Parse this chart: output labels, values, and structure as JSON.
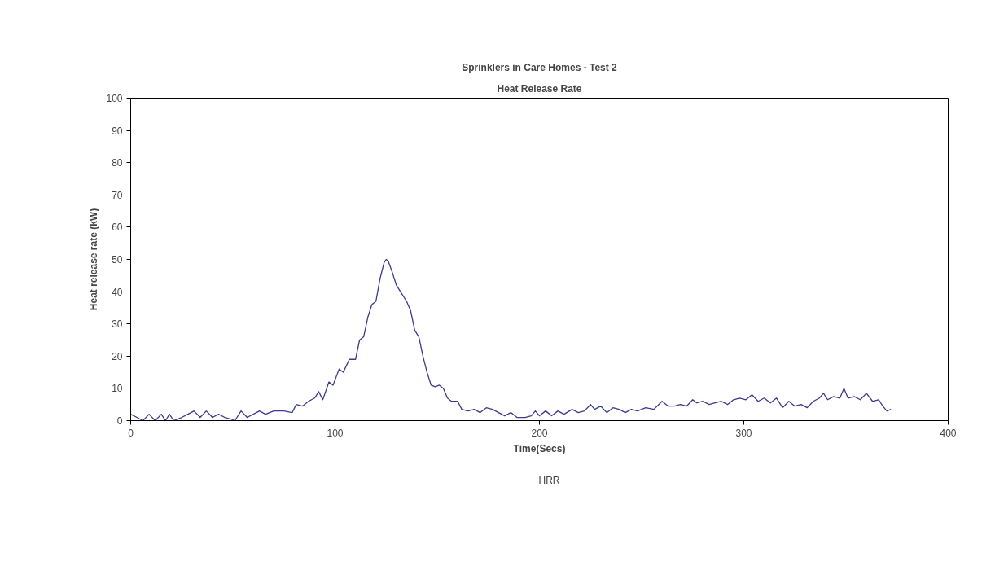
{
  "chart_data": {
    "type": "line",
    "title": "Sprinklers in Care Homes - Test 2",
    "subtitle": "Heat Release Rate",
    "xlabel": "Time(Secs)",
    "ylabel": "Heat release rate (kW)",
    "xlim": [
      0,
      400
    ],
    "xticks": [
      0,
      100,
      200,
      300,
      400
    ],
    "ylim": [
      0,
      100
    ],
    "yticks": [
      0,
      10,
      20,
      30,
      40,
      50,
      60,
      70,
      80,
      90,
      100
    ],
    "grid": false,
    "legend": "bottom",
    "marker": "none",
    "line_style": "solid",
    "series": [
      {
        "name": "HRR",
        "color": "#3c3a8c",
        "x": [
          0,
          3,
          6,
          9,
          12,
          15,
          17,
          19,
          21,
          25,
          28,
          31,
          34,
          37,
          40,
          43,
          46,
          49,
          51,
          54,
          57,
          60,
          63,
          66,
          70,
          75,
          79,
          81,
          84,
          87,
          90,
          92,
          94,
          97,
          99,
          102,
          104,
          107,
          110,
          112,
          114,
          116,
          118,
          120,
          122,
          124,
          125,
          126,
          128,
          130,
          132,
          135,
          137,
          139,
          141,
          143,
          145,
          147,
          149,
          151,
          153,
          155,
          157,
          160,
          162,
          165,
          168,
          171,
          174,
          177,
          180,
          183,
          186,
          189,
          193,
          196,
          198,
          200,
          203,
          206,
          209,
          212,
          216,
          219,
          222,
          225,
          227,
          230,
          233,
          236,
          239,
          242,
          245,
          248,
          252,
          256,
          260,
          263,
          266,
          269,
          272,
          275,
          277,
          280,
          283,
          286,
          289,
          292,
          295,
          298,
          301,
          304,
          307,
          310,
          313,
          316,
          319,
          322,
          325,
          328,
          331,
          334,
          337,
          339,
          341,
          344,
          347,
          349,
          351,
          354,
          357,
          360,
          363,
          366,
          368,
          370,
          372
        ],
        "values": [
          2,
          1,
          0,
          2,
          0,
          2,
          0,
          2,
          0,
          1,
          2,
          3,
          1,
          3,
          1,
          2,
          1,
          0.5,
          0,
          3,
          1,
          2,
          3,
          2,
          3,
          3,
          2.5,
          5,
          4.5,
          6,
          7,
          9,
          6.5,
          12,
          11,
          16,
          15,
          19,
          19,
          25,
          26,
          32,
          36,
          37,
          44,
          49,
          50,
          49.5,
          46,
          42,
          40,
          37,
          34,
          28,
          26,
          20,
          15,
          11,
          10.5,
          11,
          10,
          7,
          6,
          6,
          3.5,
          3,
          3.5,
          2.5,
          4,
          3.5,
          2.5,
          1.5,
          2.5,
          1,
          1,
          1.5,
          3,
          1.5,
          3,
          1.5,
          3,
          2,
          3.5,
          2.5,
          3,
          5,
          3.5,
          4.5,
          2.5,
          4,
          3.5,
          2.5,
          3.5,
          3,
          4,
          3.5,
          6,
          4.5,
          4.5,
          5,
          4.5,
          6.5,
          5.5,
          6,
          5,
          5.5,
          6,
          5,
          6.5,
          7,
          6.5,
          8,
          6,
          7,
          5.5,
          7,
          4,
          6,
          4.5,
          5,
          4,
          6,
          7,
          8.5,
          6.5,
          7.5,
          7,
          10,
          7,
          7.5,
          6.5,
          8.5,
          6,
          6.5,
          4.5,
          3,
          3.5
        ]
      }
    ]
  }
}
